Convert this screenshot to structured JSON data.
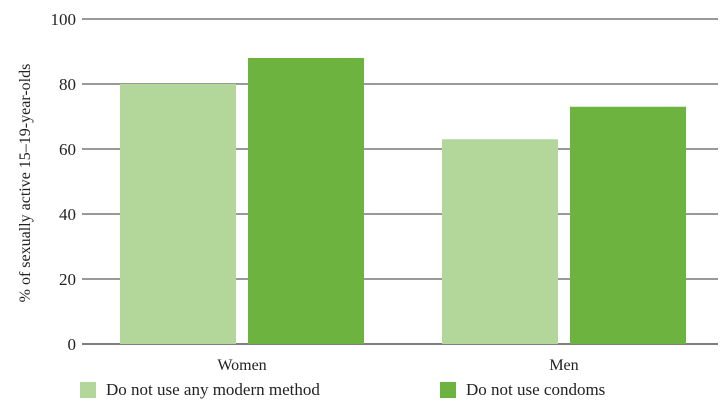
{
  "chart_data": {
    "type": "bar",
    "categories": [
      "Women",
      "Men"
    ],
    "series": [
      {
        "name": "Do not use any modern method",
        "values": [
          80,
          63
        ],
        "color": "#b3d69b"
      },
      {
        "name": "Do not use condoms",
        "values": [
          88,
          73
        ],
        "color": "#6db33f"
      }
    ],
    "ylabel": "% of sexually active 15–19-year-olds",
    "ylim": [
      0,
      100
    ],
    "yticks": [
      "0",
      "20",
      "40",
      "60",
      "80",
      "100"
    ],
    "grid": true,
    "legend_position": "bottom"
  }
}
